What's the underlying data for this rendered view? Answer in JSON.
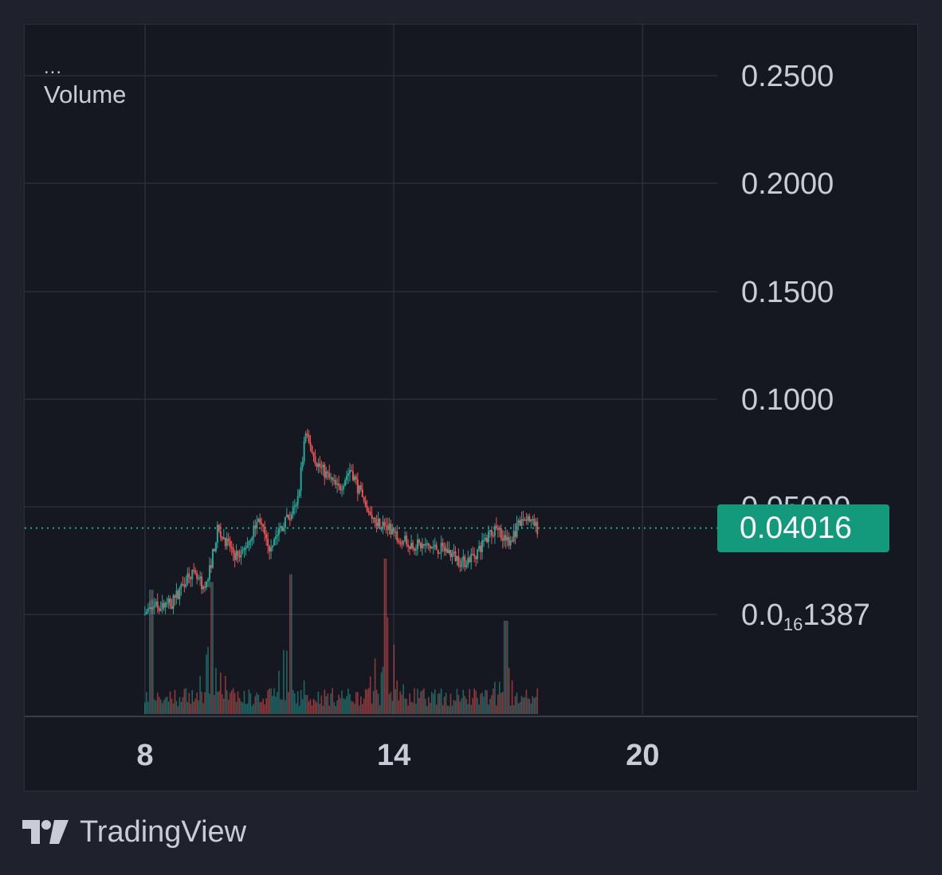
{
  "legend": {
    "more": "...",
    "volume_label": "Volume"
  },
  "brand": {
    "name": "TradingView"
  },
  "colors": {
    "background": "#161821",
    "grid": "#2a2e39",
    "up": "#26a69a",
    "down": "#ef5350",
    "price_line": "#26a69a",
    "badge": "#139a7c",
    "axis_text": "#c9ccd6"
  },
  "chart_data": {
    "type": "candlestick",
    "y_scale": "log",
    "y_ticks": [
      {
        "value": 0.25,
        "label": "0.2500"
      },
      {
        "value": 0.2,
        "label": "0.2000"
      },
      {
        "value": 0.15,
        "label": "0.1500"
      },
      {
        "value": 0.1,
        "label": "0.1000"
      },
      {
        "value": 0.05,
        "label": "0.05000"
      },
      {
        "value": 0.0,
        "label_main": "0.0",
        "label_sub": "16",
        "label_tail": "1387"
      }
    ],
    "x_ticks": [
      {
        "value": 8,
        "label": "8"
      },
      {
        "value": 14,
        "label": "14"
      },
      {
        "value": 20,
        "label": "20"
      }
    ],
    "x_range": [
      5.1,
      21.8
    ],
    "last_price": {
      "value": 0.04016,
      "label": "0.04016"
    },
    "anchors": [
      {
        "x": 8.0,
        "price": 0.0001
      },
      {
        "x": 8.3,
        "price": 0.004
      },
      {
        "x": 8.7,
        "price": 0.005
      },
      {
        "x": 9.1,
        "price": 0.02
      },
      {
        "x": 9.5,
        "price": 0.012
      },
      {
        "x": 9.8,
        "price": 0.04
      },
      {
        "x": 10.3,
        "price": 0.025
      },
      {
        "x": 10.8,
        "price": 0.045
      },
      {
        "x": 11.0,
        "price": 0.03
      },
      {
        "x": 11.3,
        "price": 0.04
      },
      {
        "x": 11.7,
        "price": 0.05
      },
      {
        "x": 11.9,
        "price": 0.083
      },
      {
        "x": 12.2,
        "price": 0.07
      },
      {
        "x": 12.7,
        "price": 0.058
      },
      {
        "x": 13.0,
        "price": 0.068
      },
      {
        "x": 13.4,
        "price": 0.047
      },
      {
        "x": 13.9,
        "price": 0.04
      },
      {
        "x": 14.4,
        "price": 0.033
      },
      {
        "x": 15.0,
        "price": 0.031
      },
      {
        "x": 15.3,
        "price": 0.03
      },
      {
        "x": 15.7,
        "price": 0.024
      },
      {
        "x": 16.0,
        "price": 0.028
      },
      {
        "x": 16.5,
        "price": 0.041
      },
      {
        "x": 16.8,
        "price": 0.034
      },
      {
        "x": 17.2,
        "price": 0.045
      },
      {
        "x": 17.5,
        "price": 0.04
      }
    ],
    "volume_spikes": [
      {
        "x": 8.15,
        "level": 0.8
      },
      {
        "x": 9.6,
        "level": 0.85
      },
      {
        "x": 11.5,
        "level": 0.9
      },
      {
        "x": 13.8,
        "level": 1.0
      },
      {
        "x": 16.7,
        "level": 0.6
      }
    ]
  }
}
